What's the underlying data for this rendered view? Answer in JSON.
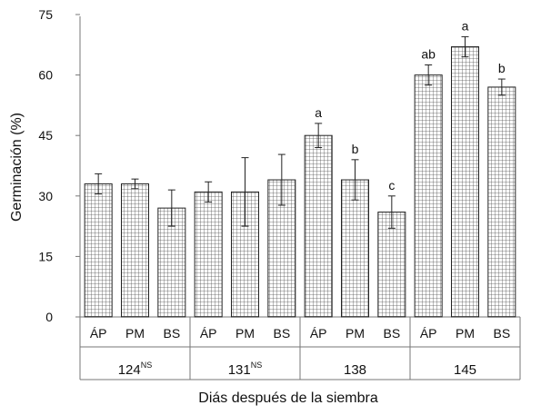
{
  "chart_data": {
    "type": "bar",
    "ylabel": "Germinación (%)",
    "xlabel": "Diás después de la siembra",
    "ylim": [
      0,
      75
    ],
    "yticks": [
      0,
      15,
      30,
      45,
      60,
      75
    ],
    "grid": false,
    "groups": [
      {
        "label": "124",
        "sup": "NS",
        "bars": [
          {
            "category": "ÁP",
            "value": 33,
            "err": 2.5,
            "sig": ""
          },
          {
            "category": "PM",
            "value": 33,
            "err": 1.2,
            "sig": ""
          },
          {
            "category": "BS",
            "value": 27,
            "err": 4.5,
            "sig": ""
          }
        ]
      },
      {
        "label": "131",
        "sup": "NS",
        "bars": [
          {
            "category": "ÁP",
            "value": 31,
            "err": 2.5,
            "sig": ""
          },
          {
            "category": "PM",
            "value": 31,
            "err": 8.5,
            "sig": ""
          },
          {
            "category": "BS",
            "value": 34,
            "err": 6.3,
            "sig": ""
          }
        ]
      },
      {
        "label": "138",
        "sup": "",
        "bars": [
          {
            "category": "ÁP",
            "value": 45,
            "err": 3.0,
            "sig": "a"
          },
          {
            "category": "PM",
            "value": 34,
            "err": 5.0,
            "sig": "b"
          },
          {
            "category": "BS",
            "value": 26,
            "err": 4.0,
            "sig": "c"
          }
        ]
      },
      {
        "label": "145",
        "sup": "",
        "bars": [
          {
            "category": "ÁP",
            "value": 60,
            "err": 2.5,
            "sig": "ab"
          },
          {
            "category": "PM",
            "value": 67,
            "err": 2.5,
            "sig": "a"
          },
          {
            "category": "BS",
            "value": 57,
            "err": 2.0,
            "sig": "b"
          }
        ]
      }
    ]
  }
}
